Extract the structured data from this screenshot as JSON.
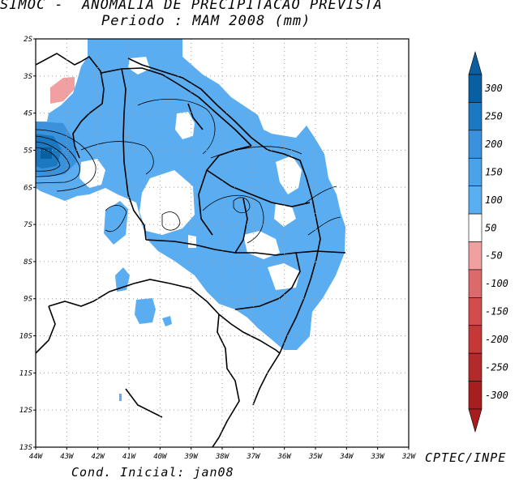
{
  "title": {
    "line1": "SIMOC -  ANOMALIA DE PRECIPITACAO PREVISTA",
    "line2": "Periodo : MAM 2008 (mm)"
  },
  "map": {
    "lat_labels": [
      "2S",
      "3S",
      "4S",
      "5S",
      "6S",
      "7S",
      "8S",
      "9S",
      "10S",
      "11S",
      "12S",
      "13S"
    ],
    "lon_labels": [
      "44W",
      "43W",
      "42W",
      "41W",
      "40W",
      "39W",
      "38W",
      "37W",
      "36W",
      "35W",
      "34W",
      "33W",
      "32W"
    ],
    "colors": {
      "anomaly_50_100": "#5aadf0",
      "anomaly_positive_dark": "#1e7dc8",
      "anomaly_negative_light": "#f0a0a0",
      "border": "#000000",
      "grid": "#a0a0a0"
    }
  },
  "legend": {
    "labels": [
      "300",
      "250",
      "200",
      "150",
      "100",
      "50",
      "-50",
      "-100",
      "-150",
      "-200",
      "-250",
      "-300"
    ],
    "colors": [
      "#0a5fa0",
      "#1c78c0",
      "#3a92dc",
      "#4aa2e8",
      "#5aaff2",
      "#ffffff",
      "#f0a0a0",
      "#dc6a6a",
      "#d24c4c",
      "#c63838",
      "#b42a2a",
      "#a81e1e"
    ],
    "top_arrow_color": "#0a5fa0",
    "bottom_arrow_color": "#a81e1e"
  },
  "footer": {
    "cond_inicial": "Cond. Inicial: jan08"
  },
  "credit": "CPTEC/INPE"
}
